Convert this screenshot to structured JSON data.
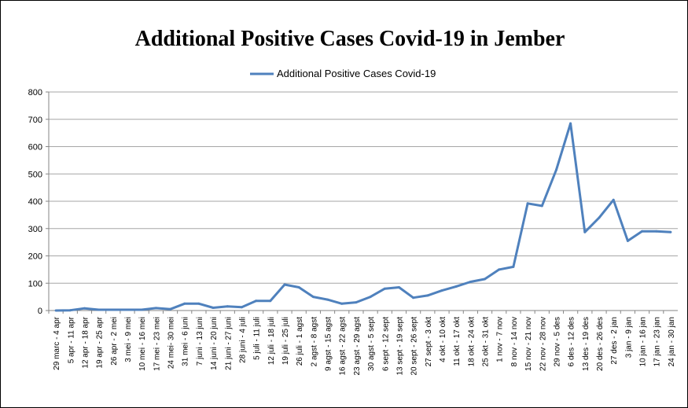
{
  "chart_data": {
    "type": "line",
    "title": "Additional Positive Cases  Covid-19 in Jember",
    "xlabel": "",
    "ylabel": "",
    "ylim": [
      0,
      800
    ],
    "yticks": [
      0,
      100,
      200,
      300,
      400,
      500,
      600,
      700,
      800
    ],
    "grid": "horizontal",
    "legend_position": "top",
    "line_color": "#4F81BD",
    "categories": [
      "29 marc -  4 apr",
      "5 apr - 11 apr",
      "12 apr - 18 apr",
      "19 apr - 25 apr",
      "26 apr - 2 mei",
      "3 mei - 9 mei",
      "10 mei - 16 mei",
      "17 mei - 23 mei",
      "24 mei- 30 mei",
      "31 mei - 6 juni",
      "7 juni - 13 juni",
      "14 juni - 20 juni",
      "21 juni - 27 juni",
      "28 juni - 4 juli",
      "5 juli - 11 juli",
      "12 juli - 18 juli",
      "19 juli - 25 juli",
      "26 juli - 1 agst",
      "2 agst - 8 agst",
      "9 agst - 15 agst",
      "16 agst - 22 agst",
      "23 agst - 29 agst",
      "30 agst - 5 sept",
      "6 sept - 12 sept",
      "13 sept - 19 sept",
      "20 sept - 26 sept",
      "27 sept - 3 okt",
      "4 okt - 10 okt",
      "11 okt - 17 okt",
      "18 okt - 24 okt",
      "25 okt - 31 okt",
      "1 nov - 7 nov",
      "8 nov - 14 nov",
      "15 nov - 21 nov",
      "22 nov - 28 nov",
      "29 nov - 5 des",
      "6 des - 12 des",
      "13 des - 19 des",
      "20 des - 26 des",
      "27 des - 2 jan",
      "3 jan - 9 jan",
      "10 jan - 16 jan",
      "17 jan - 23 jan",
      "24 jan - 30 jan"
    ],
    "series": [
      {
        "name": "Additional Positive Cases Covid-19",
        "values": [
          0,
          1,
          8,
          3,
          3,
          3,
          3,
          9,
          5,
          25,
          25,
          10,
          15,
          12,
          35,
          35,
          95,
          85,
          50,
          40,
          25,
          30,
          50,
          80,
          85,
          47,
          55,
          73,
          88,
          105,
          115,
          150,
          160,
          392,
          383,
          515,
          685,
          287,
          340,
          405,
          255,
          290,
          290,
          287
        ]
      }
    ]
  }
}
